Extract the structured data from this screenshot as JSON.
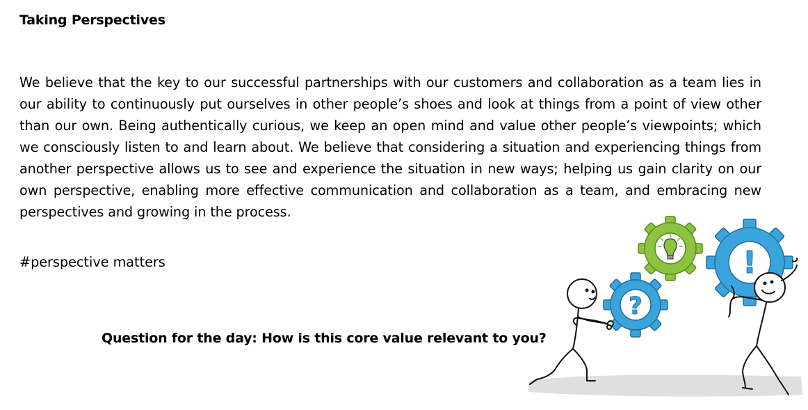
{
  "document": {
    "title": "Taking Perspectives",
    "paragraph": "We believe that the key to our successful partnerships with our customers and collaboration as a team lies in our ability to continuously put ourselves in other people’s shoes and look at things from a point of view other than our own. Being authentically curious, we keep an open mind and value other people’s viewpoints; which we consciously listen to and learn about. We believe that considering a situation and experiencing things from another perspective allows us to see and experience the situation in new ways; helping us gain clarity on our own perspective, enabling more effective communication and collaboration as a team, and embracing new perspectives and growing in the process.",
    "hashtag": "#perspective matters",
    "question": "Question for the day: How is this core value relevant to you?"
  },
  "illustration": {
    "gear_colors": {
      "blue": "#3aa4dc",
      "green": "#8cc43f"
    },
    "gear_symbols": {
      "small_gear": "?",
      "large_gear": "!"
    },
    "icons": [
      "question-gear-icon",
      "lightbulb-gear-icon",
      "exclamation-gear-icon",
      "stick-figure-left-icon",
      "stick-figure-right-icon"
    ]
  }
}
